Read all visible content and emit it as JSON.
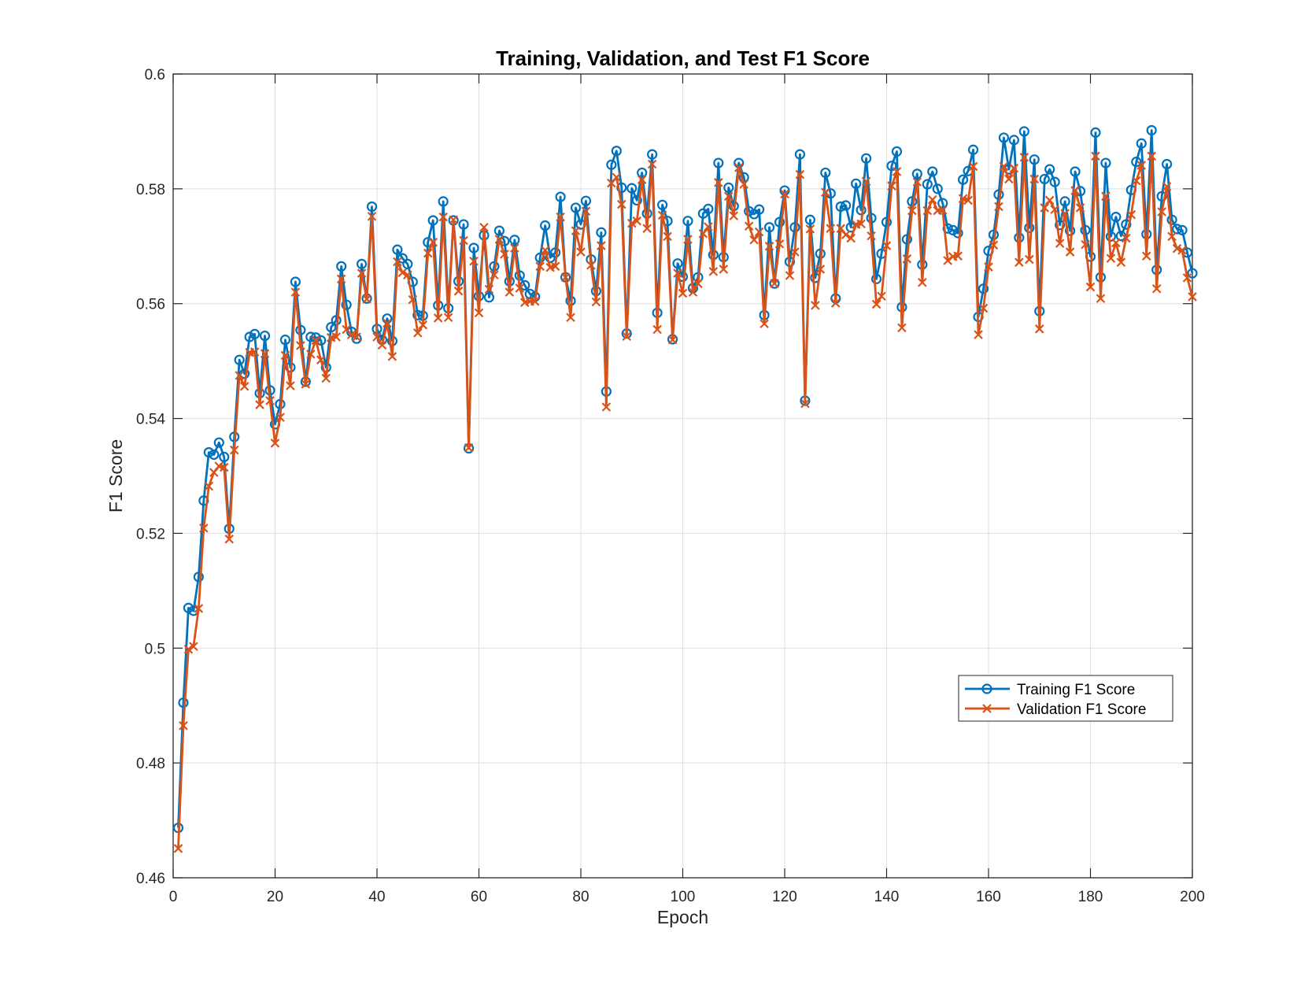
{
  "colors": {
    "training": "#0072BD",
    "validation": "#D95319",
    "grid": "#dfdfdf",
    "axis": "#262626"
  },
  "chart_data": {
    "type": "line",
    "title": "Training, Validation, and Test F1 Score",
    "xlabel": "Epoch",
    "ylabel": "F1 Score",
    "xlim": [
      0,
      200
    ],
    "ylim": [
      0.46,
      0.6
    ],
    "xticks": [
      0,
      20,
      40,
      60,
      80,
      100,
      120,
      140,
      160,
      180,
      200
    ],
    "xtick_labels": [
      "0",
      "20",
      "40",
      "60",
      "80",
      "100",
      "120",
      "140",
      "160",
      "180",
      "200"
    ],
    "yticks": [
      0.46,
      0.48,
      0.5,
      0.52,
      0.54,
      0.56,
      0.58,
      0.6
    ],
    "ytick_labels": [
      "0.46",
      "0.48",
      "0.5",
      "0.52",
      "0.54",
      "0.56",
      "0.58",
      "0.6"
    ],
    "grid": true,
    "legend_position": "right",
    "series": [
      {
        "name": "Training F1 Score",
        "marker": "circle",
        "x": [
          1,
          2,
          3,
          4,
          5,
          6,
          7,
          8,
          9,
          10,
          11,
          12,
          13,
          14,
          15,
          16,
          17,
          18,
          19,
          20,
          21,
          22,
          23,
          24,
          25,
          26,
          27,
          28,
          29,
          30,
          31,
          32,
          33,
          34,
          35,
          36,
          37,
          38,
          39,
          40,
          41,
          42,
          43,
          44,
          45,
          46,
          47,
          48,
          49,
          50,
          51,
          52,
          53,
          54,
          55,
          56,
          57,
          58,
          59,
          60,
          61,
          62,
          63,
          64,
          65,
          66,
          67,
          68,
          69,
          70,
          71,
          72,
          73,
          74,
          75,
          76,
          77,
          78,
          79,
          80,
          81,
          82,
          83,
          84,
          85,
          86,
          87,
          88,
          89,
          90,
          91,
          92,
          93,
          94,
          95,
          96,
          97,
          98,
          99,
          100,
          101,
          102,
          103,
          104,
          105,
          106,
          107,
          108,
          109,
          110,
          111,
          112,
          113,
          114,
          115,
          116,
          117,
          118,
          119,
          120,
          121,
          122,
          123,
          124,
          125,
          126,
          127,
          128,
          129,
          130,
          131,
          132,
          133,
          134,
          135,
          136,
          137,
          138,
          139,
          140,
          141,
          142,
          143,
          144,
          145,
          146,
          147,
          148,
          149,
          150,
          151,
          152,
          153,
          154,
          155,
          156,
          157,
          158,
          159,
          160,
          161,
          162,
          163,
          164,
          165,
          166,
          167,
          168,
          169,
          170,
          171,
          172,
          173,
          174,
          175,
          176,
          177,
          178,
          179,
          180,
          181,
          182,
          183,
          184,
          185,
          186,
          187,
          188,
          189,
          190,
          191,
          192,
          193,
          194,
          195,
          196,
          197,
          198,
          199,
          200
        ],
        "y": [
          0.4687,
          0.4905,
          0.507,
          0.5065,
          0.5124,
          0.5257,
          0.5341,
          0.5337,
          0.5358,
          0.5333,
          0.5208,
          0.5368,
          0.5502,
          0.5478,
          0.5542,
          0.5547,
          0.5444,
          0.5544,
          0.5449,
          0.539,
          0.5425,
          0.5537,
          0.5489,
          0.5638,
          0.5554,
          0.5464,
          0.5542,
          0.5541,
          0.5536,
          0.5489,
          0.5559,
          0.5571,
          0.5665,
          0.5598,
          0.5551,
          0.5539,
          0.5669,
          0.5609,
          0.5769,
          0.5556,
          0.5537,
          0.5574,
          0.5535,
          0.5694,
          0.5679,
          0.5669,
          0.5638,
          0.558,
          0.5579,
          0.5707,
          0.5745,
          0.5597,
          0.5778,
          0.5592,
          0.5745,
          0.5639,
          0.5738,
          0.5348,
          0.5697,
          0.5613,
          0.5719,
          0.5611,
          0.5665,
          0.5727,
          0.5709,
          0.5639,
          0.5711,
          0.5649,
          0.5632,
          0.5617,
          0.5612,
          0.568,
          0.5736,
          0.568,
          0.5689,
          0.5786,
          0.5646,
          0.5605,
          0.5767,
          0.5738,
          0.5779,
          0.5677,
          0.5622,
          0.5724,
          0.5447,
          0.5842,
          0.5866,
          0.5802,
          0.5548,
          0.5801,
          0.578,
          0.5828,
          0.5757,
          0.586,
          0.5584,
          0.5772,
          0.5744,
          0.5538,
          0.567,
          0.5647,
          0.5744,
          0.5627,
          0.5646,
          0.5757,
          0.5765,
          0.5685,
          0.5845,
          0.5681,
          0.5802,
          0.577,
          0.5845,
          0.582,
          0.5761,
          0.5756,
          0.5764,
          0.558,
          0.5733,
          0.5635,
          0.5742,
          0.5797,
          0.5673,
          0.5733,
          0.586,
          0.5431,
          0.5746,
          0.5645,
          0.5687,
          0.5828,
          0.5792,
          0.5609,
          0.5769,
          0.5771,
          0.5733,
          0.5809,
          0.5763,
          0.5853,
          0.5749,
          0.5643,
          0.5687,
          0.5742,
          0.584,
          0.5865,
          0.5594,
          0.5712,
          0.5778,
          0.5826,
          0.5668,
          0.5808,
          0.583,
          0.58,
          0.5775,
          0.5731,
          0.5728,
          0.5723,
          0.5816,
          0.5831,
          0.5868,
          0.5577,
          0.5626,
          0.5692,
          0.572,
          0.579,
          0.5889,
          0.5834,
          0.5885,
          0.5715,
          0.59,
          0.5732,
          0.5851,
          0.5587,
          0.5817,
          0.5834,
          0.5812,
          0.5737,
          0.5778,
          0.5727,
          0.583,
          0.5796,
          0.5728,
          0.5682,
          0.5898,
          0.5646,
          0.5845,
          0.5717,
          0.5751,
          0.5718,
          0.5738,
          0.5798,
          0.5847,
          0.5879,
          0.5721,
          0.5902,
          0.5659,
          0.5787,
          0.5843,
          0.5746,
          0.573,
          0.5728,
          0.5689,
          0.5653
        ]
      },
      {
        "name": "Validation F1 Score",
        "marker": "x",
        "x": [
          1,
          2,
          3,
          4,
          5,
          6,
          7,
          8,
          9,
          10,
          11,
          12,
          13,
          14,
          15,
          16,
          17,
          18,
          19,
          20,
          21,
          22,
          23,
          24,
          25,
          26,
          27,
          28,
          29,
          30,
          31,
          32,
          33,
          34,
          35,
          36,
          37,
          38,
          39,
          40,
          41,
          42,
          43,
          44,
          45,
          46,
          47,
          48,
          49,
          50,
          51,
          52,
          53,
          54,
          55,
          56,
          57,
          58,
          59,
          60,
          61,
          62,
          63,
          64,
          65,
          66,
          67,
          68,
          69,
          70,
          71,
          72,
          73,
          74,
          75,
          76,
          77,
          78,
          79,
          80,
          81,
          82,
          83,
          84,
          85,
          86,
          87,
          88,
          89,
          90,
          91,
          92,
          93,
          94,
          95,
          96,
          97,
          98,
          99,
          100,
          101,
          102,
          103,
          104,
          105,
          106,
          107,
          108,
          109,
          110,
          111,
          112,
          113,
          114,
          115,
          116,
          117,
          118,
          119,
          120,
          121,
          122,
          123,
          124,
          125,
          126,
          127,
          128,
          129,
          130,
          131,
          132,
          133,
          134,
          135,
          136,
          137,
          138,
          139,
          140,
          141,
          142,
          143,
          144,
          145,
          146,
          147,
          148,
          149,
          150,
          151,
          152,
          153,
          154,
          155,
          156,
          157,
          158,
          159,
          160,
          161,
          162,
          163,
          164,
          165,
          166,
          167,
          168,
          169,
          170,
          171,
          172,
          173,
          174,
          175,
          176,
          177,
          178,
          179,
          180,
          181,
          182,
          183,
          184,
          185,
          186,
          187,
          188,
          189,
          190,
          191,
          192,
          193,
          194,
          195,
          196,
          197,
          198,
          199,
          200
        ],
        "y": [
          0.4651,
          0.4865,
          0.4998,
          0.5003,
          0.5069,
          0.5209,
          0.5282,
          0.5306,
          0.5317,
          0.5315,
          0.519,
          0.5345,
          0.5475,
          0.5456,
          0.5515,
          0.5516,
          0.5424,
          0.5513,
          0.5431,
          0.5357,
          0.5402,
          0.551,
          0.5457,
          0.562,
          0.5527,
          0.546,
          0.5512,
          0.5536,
          0.5502,
          0.547,
          0.5541,
          0.5542,
          0.5643,
          0.5555,
          0.5546,
          0.5542,
          0.5653,
          0.5608,
          0.5752,
          0.5542,
          0.5528,
          0.5566,
          0.5508,
          0.5673,
          0.5654,
          0.565,
          0.5607,
          0.5549,
          0.5563,
          0.5688,
          0.5707,
          0.5575,
          0.5751,
          0.5576,
          0.5746,
          0.5622,
          0.571,
          0.5349,
          0.5674,
          0.5584,
          0.5733,
          0.5625,
          0.565,
          0.5712,
          0.5686,
          0.562,
          0.5697,
          0.5627,
          0.5602,
          0.5604,
          0.5604,
          0.5665,
          0.5693,
          0.5663,
          0.5665,
          0.5751,
          0.5646,
          0.5576,
          0.5727,
          0.569,
          0.5761,
          0.5667,
          0.5603,
          0.5701,
          0.542,
          0.581,
          0.582,
          0.5773,
          0.5543,
          0.574,
          0.5744,
          0.5816,
          0.5731,
          0.5843,
          0.5555,
          0.5754,
          0.5717,
          0.5537,
          0.5653,
          0.5618,
          0.5712,
          0.562,
          0.5635,
          0.5722,
          0.5734,
          0.5656,
          0.5811,
          0.566,
          0.5787,
          0.5753,
          0.5837,
          0.5808,
          0.5735,
          0.5711,
          0.5725,
          0.5565,
          0.57,
          0.5635,
          0.5704,
          0.5791,
          0.5649,
          0.569,
          0.5825,
          0.5426,
          0.573,
          0.5597,
          0.566,
          0.5794,
          0.5731,
          0.5601,
          0.5731,
          0.572,
          0.5714,
          0.5738,
          0.5739,
          0.5813,
          0.5718,
          0.5599,
          0.5613,
          0.5701,
          0.5805,
          0.583,
          0.5558,
          0.5678,
          0.5762,
          0.5812,
          0.5637,
          0.5762,
          0.5781,
          0.5762,
          0.5763,
          0.5675,
          0.5682,
          0.5683,
          0.5783,
          0.578,
          0.5839,
          0.5546,
          0.5592,
          0.5664,
          0.5702,
          0.5769,
          0.5839,
          0.5817,
          0.5836,
          0.5672,
          0.5855,
          0.5677,
          0.5817,
          0.5556,
          0.5767,
          0.578,
          0.5764,
          0.5705,
          0.5757,
          0.569,
          0.5797,
          0.5767,
          0.5703,
          0.5629,
          0.5857,
          0.5609,
          0.5787,
          0.5679,
          0.5706,
          0.5672,
          0.5714,
          0.5755,
          0.5814,
          0.5841,
          0.5683,
          0.5857,
          0.5626,
          0.576,
          0.5804,
          0.5717,
          0.5696,
          0.5693,
          0.5645,
          0.5612
        ]
      }
    ]
  }
}
